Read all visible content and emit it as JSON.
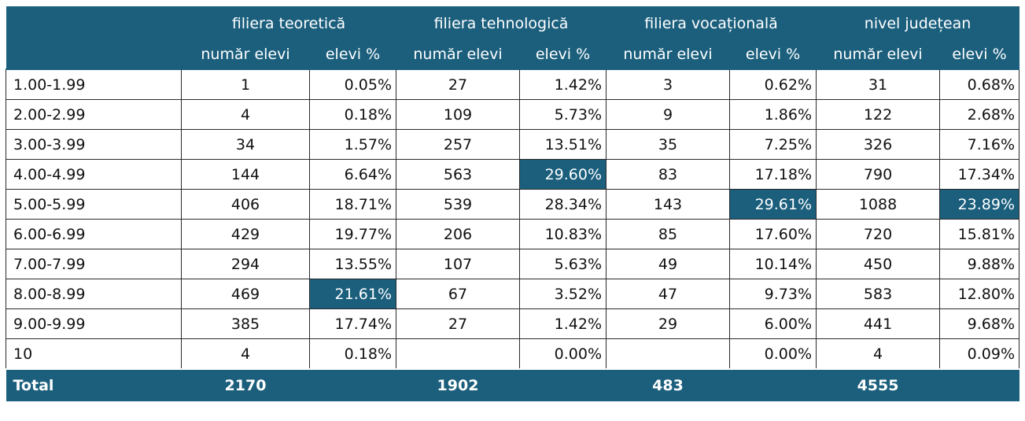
{
  "header": {
    "groups": [
      "filiera teoretică",
      "filiera tehnologică",
      "filiera vocațională",
      "nivel județean"
    ],
    "subheaders": [
      "număr elevi",
      "elevi %",
      "număr elevi",
      "elevi %",
      "număr elevi",
      "elevi %",
      "număr elevi",
      "elevi %"
    ]
  },
  "rows": [
    {
      "label": "1.00-1.99",
      "cells": [
        "1",
        "0.05%",
        "27",
        "1.42%",
        "3",
        "0.62%",
        "31",
        "0.68%"
      ]
    },
    {
      "label": "2.00-2.99",
      "cells": [
        "4",
        "0.18%",
        "109",
        "5.73%",
        "9",
        "1.86%",
        "122",
        "2.68%"
      ]
    },
    {
      "label": "3.00-3.99",
      "cells": [
        "34",
        "1.57%",
        "257",
        "13.51%",
        "35",
        "7.25%",
        "326",
        "7.16%"
      ]
    },
    {
      "label": "4.00-4.99",
      "cells": [
        "144",
        "6.64%",
        "563",
        "29.60%",
        "83",
        "17.18%",
        "790",
        "17.34%"
      ]
    },
    {
      "label": "5.00-5.99",
      "cells": [
        "406",
        "18.71%",
        "539",
        "28.34%",
        "143",
        "29.61%",
        "1088",
        "23.89%"
      ]
    },
    {
      "label": "6.00-6.99",
      "cells": [
        "429",
        "19.77%",
        "206",
        "10.83%",
        "85",
        "17.60%",
        "720",
        "15.81%"
      ]
    },
    {
      "label": "7.00-7.99",
      "cells": [
        "294",
        "13.55%",
        "107",
        "5.63%",
        "49",
        "10.14%",
        "450",
        "9.88%"
      ]
    },
    {
      "label": "8.00-8.99",
      "cells": [
        "469",
        "21.61%",
        "67",
        "3.52%",
        "47",
        "9.73%",
        "583",
        "12.80%"
      ]
    },
    {
      "label": "9.00-9.99",
      "cells": [
        "385",
        "17.74%",
        "27",
        "1.42%",
        "29",
        "6.00%",
        "441",
        "9.68%"
      ]
    },
    {
      "label": "10",
      "cells": [
        "4",
        "0.18%",
        "",
        "0.00%",
        "",
        "0.00%",
        "4",
        "0.09%"
      ]
    }
  ],
  "total": {
    "label": "Total",
    "values": [
      "2170",
      "1902",
      "483",
      "4555"
    ]
  },
  "highlighted_max": [
    {
      "row": "8.00-8.99",
      "column": "filiera teoretică elevi %"
    },
    {
      "row": "4.00-4.99",
      "column": "filiera tehnologică elevi %"
    },
    {
      "row": "5.00-5.99",
      "column": "filiera vocațională elevi %"
    },
    {
      "row": "5.00-5.99",
      "column": "nivel județean elevi %"
    }
  ],
  "colors": {
    "header_bg": "#1b5f7d",
    "header_text": "#ffffff",
    "highlight_bg": "#1b5f7d",
    "border": "#2a2a2a"
  }
}
